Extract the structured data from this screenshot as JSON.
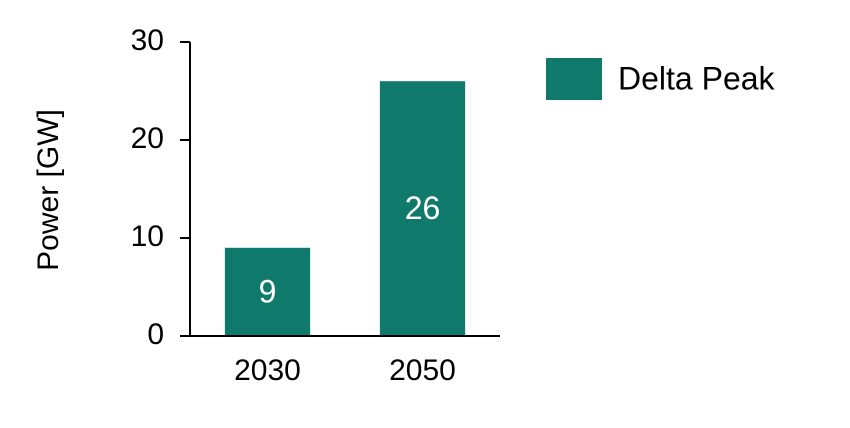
{
  "chart_data": {
    "type": "bar",
    "y_label": "Power [GW]",
    "categories": [
      "2030",
      "2050"
    ],
    "series": [
      {
        "name": "Delta Peak",
        "color": "#0f7a6c",
        "values": [
          9,
          26
        ]
      }
    ],
    "ylim": [
      0,
      30
    ],
    "yticks": [
      0,
      10,
      20,
      30
    ],
    "grid": false,
    "legend": "right"
  }
}
